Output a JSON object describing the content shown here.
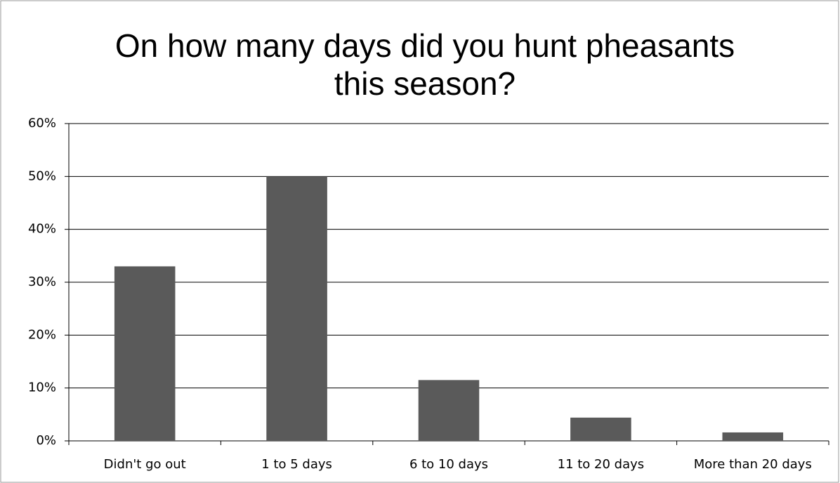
{
  "chart_data": {
    "type": "bar",
    "title": "On how many days did you hunt pheasants this season?",
    "categories": [
      "Didn't go out",
      "1 to 5 days",
      "6 to 10 days",
      "11 to 20 days",
      "More than 20 days"
    ],
    "values": [
      33,
      50,
      11.5,
      4.4,
      1.6
    ],
    "color": "#5a5a5a",
    "ylim": [
      0,
      60
    ],
    "yticks": [
      {
        "value": 0,
        "label": "0%"
      },
      {
        "value": 10,
        "label": "10%"
      },
      {
        "value": 20,
        "label": "20%"
      },
      {
        "value": 30,
        "label": "30%"
      },
      {
        "value": 40,
        "label": "40%"
      },
      {
        "value": 50,
        "label": "50%"
      },
      {
        "value": 60,
        "label": "60%"
      }
    ],
    "grid": true
  }
}
